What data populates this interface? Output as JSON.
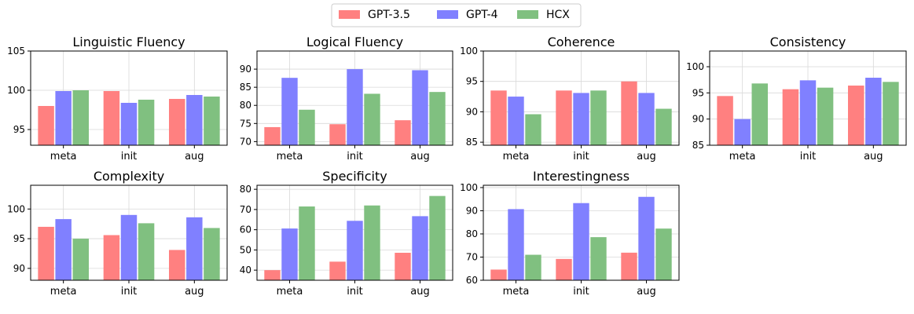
{
  "legend": [
    {
      "name": "GPT-3.5",
      "color": "#ff8080"
    },
    {
      "name": "GPT-4",
      "color": "#8080ff"
    },
    {
      "name": "HCX",
      "color": "#80c080"
    }
  ],
  "chart_data": [
    {
      "type": "bar",
      "title": "Linguistic Fluency",
      "categories": [
        "meta",
        "init",
        "aug"
      ],
      "ylim": [
        93,
        105
      ],
      "yticks": [
        95,
        100,
        105
      ],
      "grid": true,
      "series": [
        {
          "name": "GPT-3.5",
          "values": [
            98.0,
            99.9,
            98.9
          ]
        },
        {
          "name": "GPT-4",
          "values": [
            99.9,
            98.4,
            99.4
          ]
        },
        {
          "name": "HCX",
          "values": [
            100.0,
            98.8,
            99.2
          ]
        }
      ]
    },
    {
      "type": "bar",
      "title": "Logical Fluency",
      "categories": [
        "meta",
        "init",
        "aug"
      ],
      "ylim": [
        69,
        95
      ],
      "yticks": [
        70,
        75,
        80,
        85,
        90
      ],
      "grid": true,
      "series": [
        {
          "name": "GPT-3.5",
          "values": [
            74.0,
            74.8,
            75.9
          ]
        },
        {
          "name": "GPT-4",
          "values": [
            87.6,
            90.0,
            89.7
          ]
        },
        {
          "name": "HCX",
          "values": [
            78.8,
            83.2,
            83.7
          ]
        }
      ]
    },
    {
      "type": "bar",
      "title": "Coherence",
      "categories": [
        "meta",
        "init",
        "aug"
      ],
      "ylim": [
        84.5,
        100
      ],
      "yticks": [
        85,
        90,
        95,
        100
      ],
      "grid": true,
      "series": [
        {
          "name": "GPT-3.5",
          "values": [
            93.5,
            93.5,
            95.0
          ]
        },
        {
          "name": "GPT-4",
          "values": [
            92.5,
            93.1,
            93.1
          ]
        },
        {
          "name": "HCX",
          "values": [
            89.6,
            93.5,
            90.5
          ]
        }
      ]
    },
    {
      "type": "bar",
      "title": "Consistency",
      "categories": [
        "meta",
        "init",
        "aug"
      ],
      "ylim": [
        85,
        103
      ],
      "yticks": [
        85,
        90,
        95,
        100
      ],
      "grid": true,
      "series": [
        {
          "name": "GPT-3.5",
          "values": [
            94.4,
            95.7,
            96.4
          ]
        },
        {
          "name": "GPT-4",
          "values": [
            90.0,
            97.4,
            97.9
          ]
        },
        {
          "name": "HCX",
          "values": [
            96.8,
            96.0,
            97.1
          ]
        }
      ]
    },
    {
      "type": "bar",
      "title": "Complexity",
      "categories": [
        "meta",
        "init",
        "aug"
      ],
      "ylim": [
        88,
        104
      ],
      "yticks": [
        90,
        95,
        100
      ],
      "grid": true,
      "series": [
        {
          "name": "GPT-3.5",
          "values": [
            97.0,
            95.6,
            93.1
          ]
        },
        {
          "name": "GPT-4",
          "values": [
            98.3,
            99.0,
            98.6
          ]
        },
        {
          "name": "HCX",
          "values": [
            95.0,
            97.6,
            96.8
          ]
        }
      ]
    },
    {
      "type": "bar",
      "title": "Specificity",
      "categories": [
        "meta",
        "init",
        "aug"
      ],
      "ylim": [
        35,
        82
      ],
      "yticks": [
        40,
        50,
        60,
        70,
        80
      ],
      "grid": true,
      "series": [
        {
          "name": "GPT-3.5",
          "values": [
            40.0,
            44.2,
            48.6
          ]
        },
        {
          "name": "GPT-4",
          "values": [
            60.6,
            64.4,
            66.7
          ]
        },
        {
          "name": "HCX",
          "values": [
            71.5,
            72.0,
            76.7
          ]
        }
      ]
    },
    {
      "type": "bar",
      "title": "Interestingness",
      "categories": [
        "meta",
        "init",
        "aug"
      ],
      "ylim": [
        60,
        101
      ],
      "yticks": [
        60,
        70,
        80,
        90,
        100
      ],
      "grid": true,
      "series": [
        {
          "name": "GPT-3.5",
          "values": [
            64.6,
            69.2,
            71.9
          ]
        },
        {
          "name": "GPT-4",
          "values": [
            90.7,
            93.3,
            96.0
          ]
        },
        {
          "name": "HCX",
          "values": [
            71.0,
            78.6,
            82.3
          ]
        }
      ]
    }
  ]
}
